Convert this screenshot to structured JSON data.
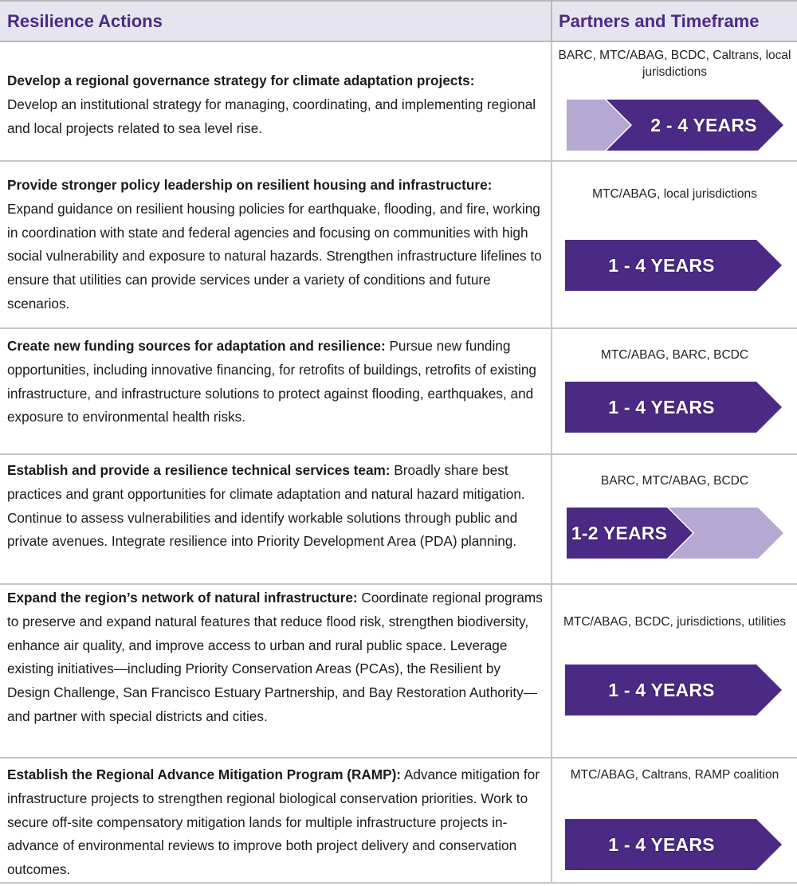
{
  "header": {
    "col1": "Resilience Actions",
    "col2": "Partners and Timeframe"
  },
  "colors": {
    "dark_purple": "#4b2a85",
    "light_purple": "#b5a8d3",
    "header_bg": "#e6e4ee"
  },
  "rows": [
    {
      "title": "Develop a regional governance strategy for climate adaptation projects:",
      "body": "Develop an institutional strategy for managing, coordinating, and implementing regional and local projects related to sea level rise.",
      "partners": "BARC, MTC/ABAG, BCDC, Caltrans, local jurisdictions",
      "timeframe": "2 - 4 YEARS",
      "timeframe_style": "light-lead"
    },
    {
      "title": "Provide stronger policy leadership on resilient housing and infrastructure:",
      "body": "Expand guidance on resilient housing policies for earthquake, flooding, and fire, working in coordination with state and federal agencies and focusing on communities with high social vulnerability and exposure to natural hazards. Strengthen infrastructure lifelines to ensure that utilities can provide services under a variety of conditions and future scenarios.",
      "partners": "MTC/ABAG, local jurisdictions",
      "timeframe": "1 - 4 YEARS",
      "timeframe_style": "full"
    },
    {
      "title": "Create new funding sources for adaptation and resilience:",
      "body": "Pursue new funding opportunities, including innovative financing, for retrofits of buildings, retrofits of existing infrastructure, and infrastructure solutions to protect against flooding, earthquakes, and exposure to environmental health risks.",
      "partners": "MTC/ABAG, BARC, BCDC",
      "timeframe": "1 - 4 YEARS",
      "timeframe_style": "full"
    },
    {
      "title": "Establish and provide a resilience technical services team:",
      "body": "Broadly share best practices and grant opportunities for climate adaptation and natural hazard mitigation. Continue to assess vulnerabilities and identify workable solutions through public and private avenues. Integrate resilience into Priority Development Area (PDA) planning.",
      "partners": "BARC, MTC/ABAG, BCDC",
      "timeframe": "1-2 YEARS",
      "timeframe_style": "light-tail"
    },
    {
      "title": "Expand the region’s network of natural infrastructure:",
      "body": "Coordinate regional programs to preserve and expand natural features that reduce flood risk, strengthen biodiversity, enhance air quality, and improve access to urban and rural public space. Leverage existing initiatives—including Priority Conservation Areas (PCAs), the Resilient by Design Challenge, San Francisco Estuary Partnership, and Bay Restoration Authority—and partner with special districts and cities.",
      "partners": "MTC/ABAG, BCDC, jurisdictions, utilities",
      "timeframe": "1 - 4 YEARS",
      "timeframe_style": "full"
    },
    {
      "title": "Establish the Regional Advance Mitigation Program (RAMP):",
      "body": "Advance mitigation for infrastructure projects to strengthen regional biological conservation priorities. Work to secure off-site compensatory mitigation lands for multiple infrastructure projects in-advance of environmental reviews to improve both project delivery and conservation outcomes.",
      "partners": "MTC/ABAG, Caltrans, RAMP coalition",
      "timeframe": "1 - 4 YEARS",
      "timeframe_style": "full"
    }
  ]
}
